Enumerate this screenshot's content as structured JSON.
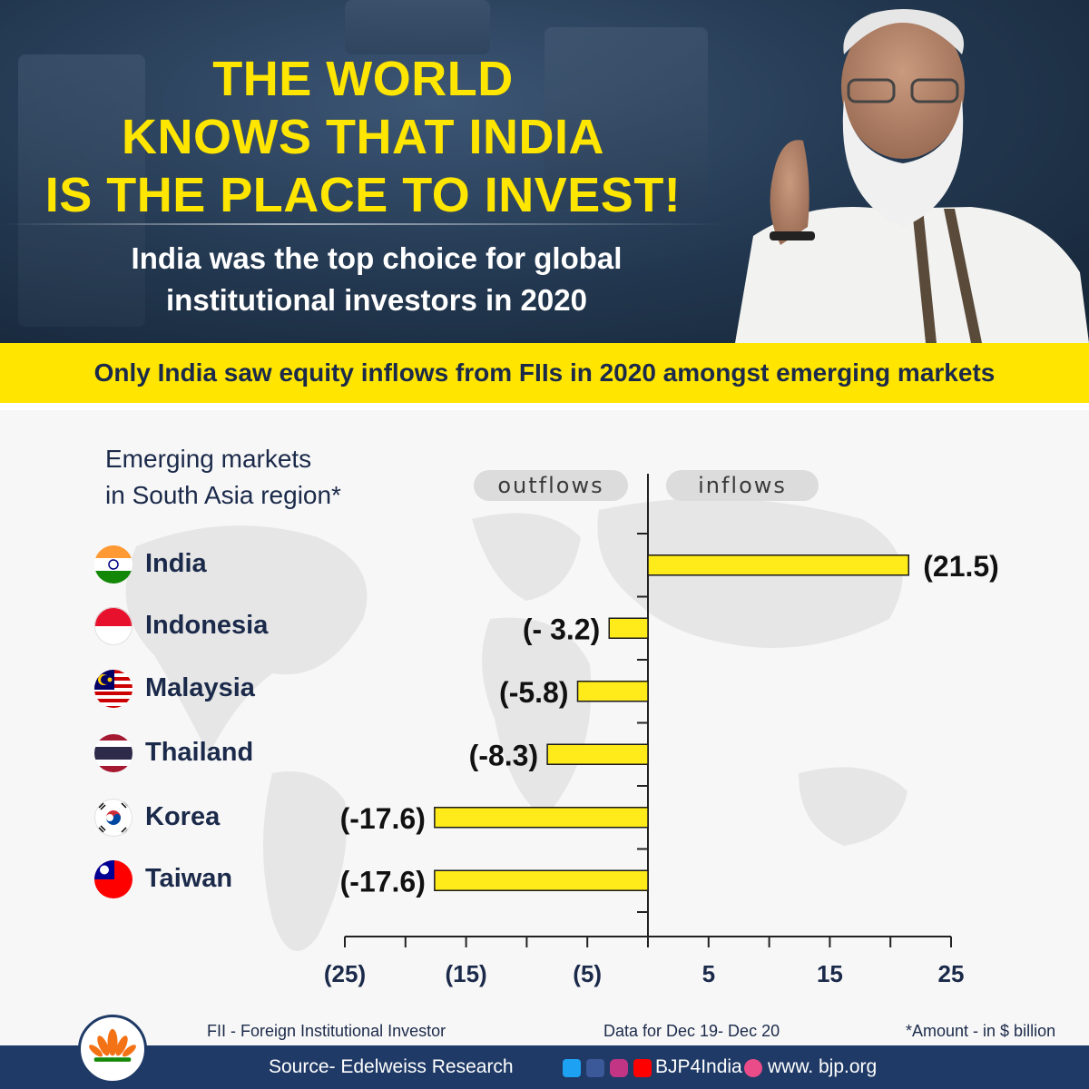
{
  "headline": {
    "line1": "THE WORLD",
    "line2": "KNOWS THAT INDIA",
    "line3": "IS THE PLACE TO INVEST!"
  },
  "subhead": {
    "line1": "India was the top choice for global",
    "line2": "institutional investors in 2020"
  },
  "banner": "Only India saw equity inflows from FIIs in 2020 amongst emerging markets",
  "colors": {
    "hero_bg": "#22374f",
    "headline": "#ffe600",
    "bar": "#ffeb1a",
    "text": "#1b2a4a",
    "footer_bg": "#1f3a66"
  },
  "chart_data": {
    "type": "bar",
    "orientation": "horizontal",
    "title": "Emerging markets in South Asia region*",
    "title_lines": [
      "Emerging markets",
      "in South Asia region*"
    ],
    "negative_label": "outflows",
    "positive_label": "inflows",
    "categories": [
      "India",
      "Indonesia",
      "Malaysia",
      "Thailand",
      "Korea",
      "Taiwan"
    ],
    "values": [
      21.5,
      -3.2,
      -5.8,
      -8.3,
      -17.6,
      -17.6
    ],
    "value_labels": [
      "(21.5)",
      "(- 3.2)",
      "(-5.8)",
      "(-8.3)",
      "(-17.6)",
      "(-17.6)"
    ],
    "flags": [
      "india-flag-icon",
      "indonesia-flag-icon",
      "malaysia-flag-icon",
      "thailand-flag-icon",
      "korea-flag-icon",
      "taiwan-flag-icon"
    ],
    "xlim": [
      -25,
      25
    ],
    "x_ticks": [
      -25,
      -20,
      -15,
      -10,
      -5,
      0,
      5,
      10,
      15,
      20,
      25
    ],
    "x_tick_labels": [
      {
        "value": -25,
        "label": "(25)"
      },
      {
        "value": -15,
        "label": "(15)"
      },
      {
        "value": -5,
        "label": "(5)"
      },
      {
        "value": 5,
        "label": "5"
      },
      {
        "value": 15,
        "label": "15"
      },
      {
        "value": 25,
        "label": "25"
      }
    ],
    "grid": false
  },
  "footnotes": {
    "fii": "FII - Foreign Institutional Investor",
    "period": "Data for Dec 19- Dec 20",
    "unit": "*Amount - in $ billion"
  },
  "footer": {
    "source": "Source- Edelweiss Research",
    "handle": "BJP4India",
    "website": "www. bjp.org",
    "icons": [
      "twitter-icon",
      "facebook-icon",
      "instagram-icon",
      "youtube-icon",
      "dribbble-icon"
    ]
  }
}
